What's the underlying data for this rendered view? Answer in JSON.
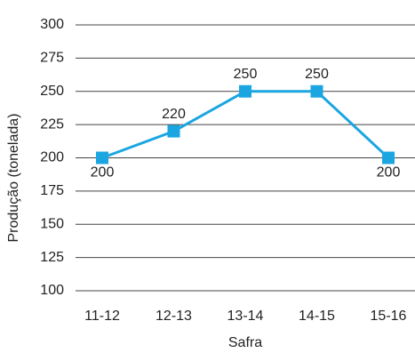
{
  "chart_data": {
    "type": "line",
    "x_label": "Safra",
    "y_label": "Produção (tonelada)",
    "categories": [
      "11-12",
      "12-13",
      "13-14",
      "14-15",
      "15-16"
    ],
    "values": [
      200,
      220,
      250,
      250,
      200
    ],
    "color": "#1ba6e1",
    "ylim": [
      100,
      300
    ],
    "yticks": [
      100,
      125,
      150,
      175,
      200,
      225,
      250,
      275,
      300
    ],
    "grid": true
  }
}
